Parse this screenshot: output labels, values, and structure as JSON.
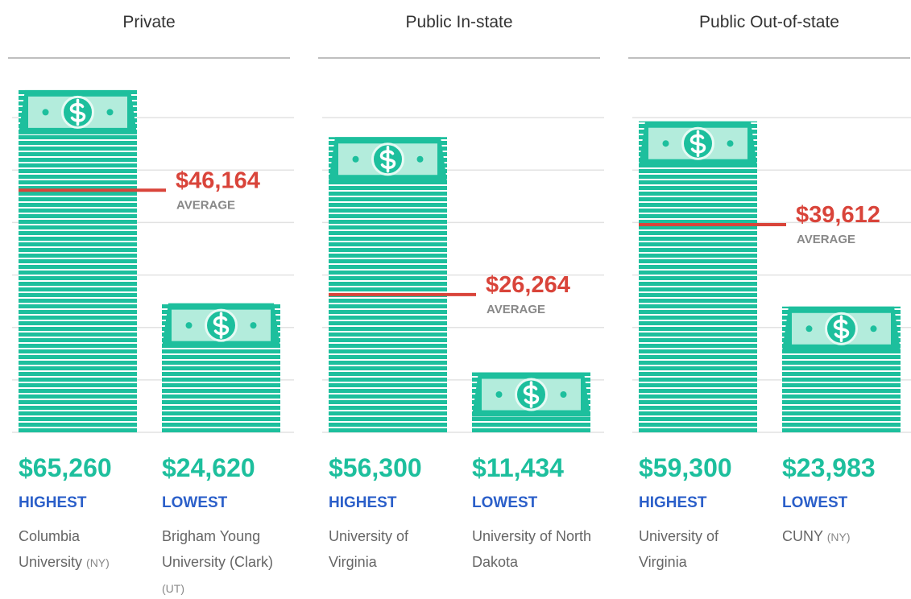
{
  "chart_data": [
    {
      "type": "bar",
      "title": "Private",
      "categories": [
        "HIGHEST",
        "LOWEST"
      ],
      "values": [
        65260,
        24620
      ],
      "value_labels": [
        "$65,260",
        "$24,620"
      ],
      "schools": [
        {
          "name": "Columbia University",
          "state": "(NY)"
        },
        {
          "name": "Brigham Young University (Clark)",
          "state": "(UT)"
        }
      ],
      "average": 46164,
      "average_label": "$46,164",
      "average_text": "AVERAGE",
      "ylim": [
        0,
        70000
      ],
      "yticks": [
        10000,
        20000,
        30000,
        40000,
        50000,
        60000
      ],
      "grid": true,
      "color": "#1dbf9d"
    },
    {
      "type": "bar",
      "title": "Public In-state",
      "categories": [
        "HIGHEST",
        "LOWEST"
      ],
      "values": [
        56300,
        11434
      ],
      "value_labels": [
        "$56,300",
        "$11,434"
      ],
      "schools": [
        {
          "name": "University of Virginia"
        },
        {
          "name": "University of North Dakota"
        }
      ],
      "average": 26264,
      "average_label": "$26,264",
      "average_text": "AVERAGE",
      "ylim": [
        0,
        70000
      ],
      "yticks": [
        10000,
        20000,
        30000,
        40000,
        50000,
        60000
      ],
      "grid": true,
      "color": "#1dbf9d"
    },
    {
      "type": "bar",
      "title": "Public Out-of-state",
      "categories": [
        "HIGHEST",
        "LOWEST"
      ],
      "values": [
        59300,
        23983
      ],
      "value_labels": [
        "$59,300",
        "$23,983"
      ],
      "schools": [
        {
          "name": "University of Virginia"
        },
        {
          "name": "CUNY",
          "state": "(NY)"
        }
      ],
      "average": 39612,
      "average_label": "$39,612",
      "average_text": "AVERAGE",
      "ylim": [
        0,
        70000
      ],
      "yticks": [
        10000,
        20000,
        30000,
        40000,
        50000,
        60000
      ],
      "grid": true,
      "color": "#1dbf9d"
    }
  ]
}
